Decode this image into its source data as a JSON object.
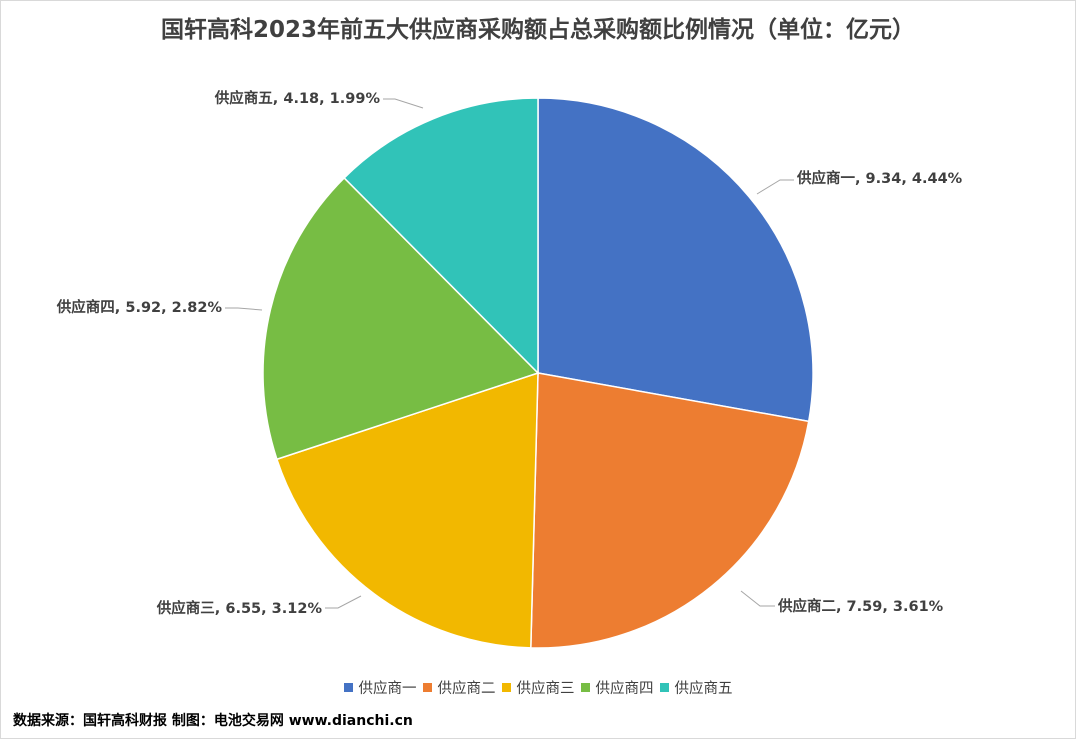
{
  "chart_data": {
    "type": "pie",
    "title": "国轩高科2023年前五大供应商采购额占总采购额比例情况（单位：亿元）",
    "categories": [
      "供应商一",
      "供应商二",
      "供应商三",
      "供应商四",
      "供应商五"
    ],
    "values": [
      9.34,
      7.59,
      6.55,
      5.92,
      4.18
    ],
    "percent_labels": [
      "4.44%",
      "3.61%",
      "3.12%",
      "2.82%",
      "1.99%"
    ],
    "data_labels": [
      "供应商一, 9.34, 4.44%",
      "供应商二, 7.59, 3.61%",
      "供应商三, 6.55, 3.12%",
      "供应商四, 5.92, 2.82%",
      "供应商五, 4.18, 1.99%"
    ],
    "colors": [
      "#4472c4",
      "#ed7d31",
      "#f2b800",
      "#77bd44",
      "#31c3b8"
    ],
    "legend_position": "bottom"
  },
  "source_text": "数据来源：国轩高科财报  制图：电池交易网 www.dianchi.cn"
}
